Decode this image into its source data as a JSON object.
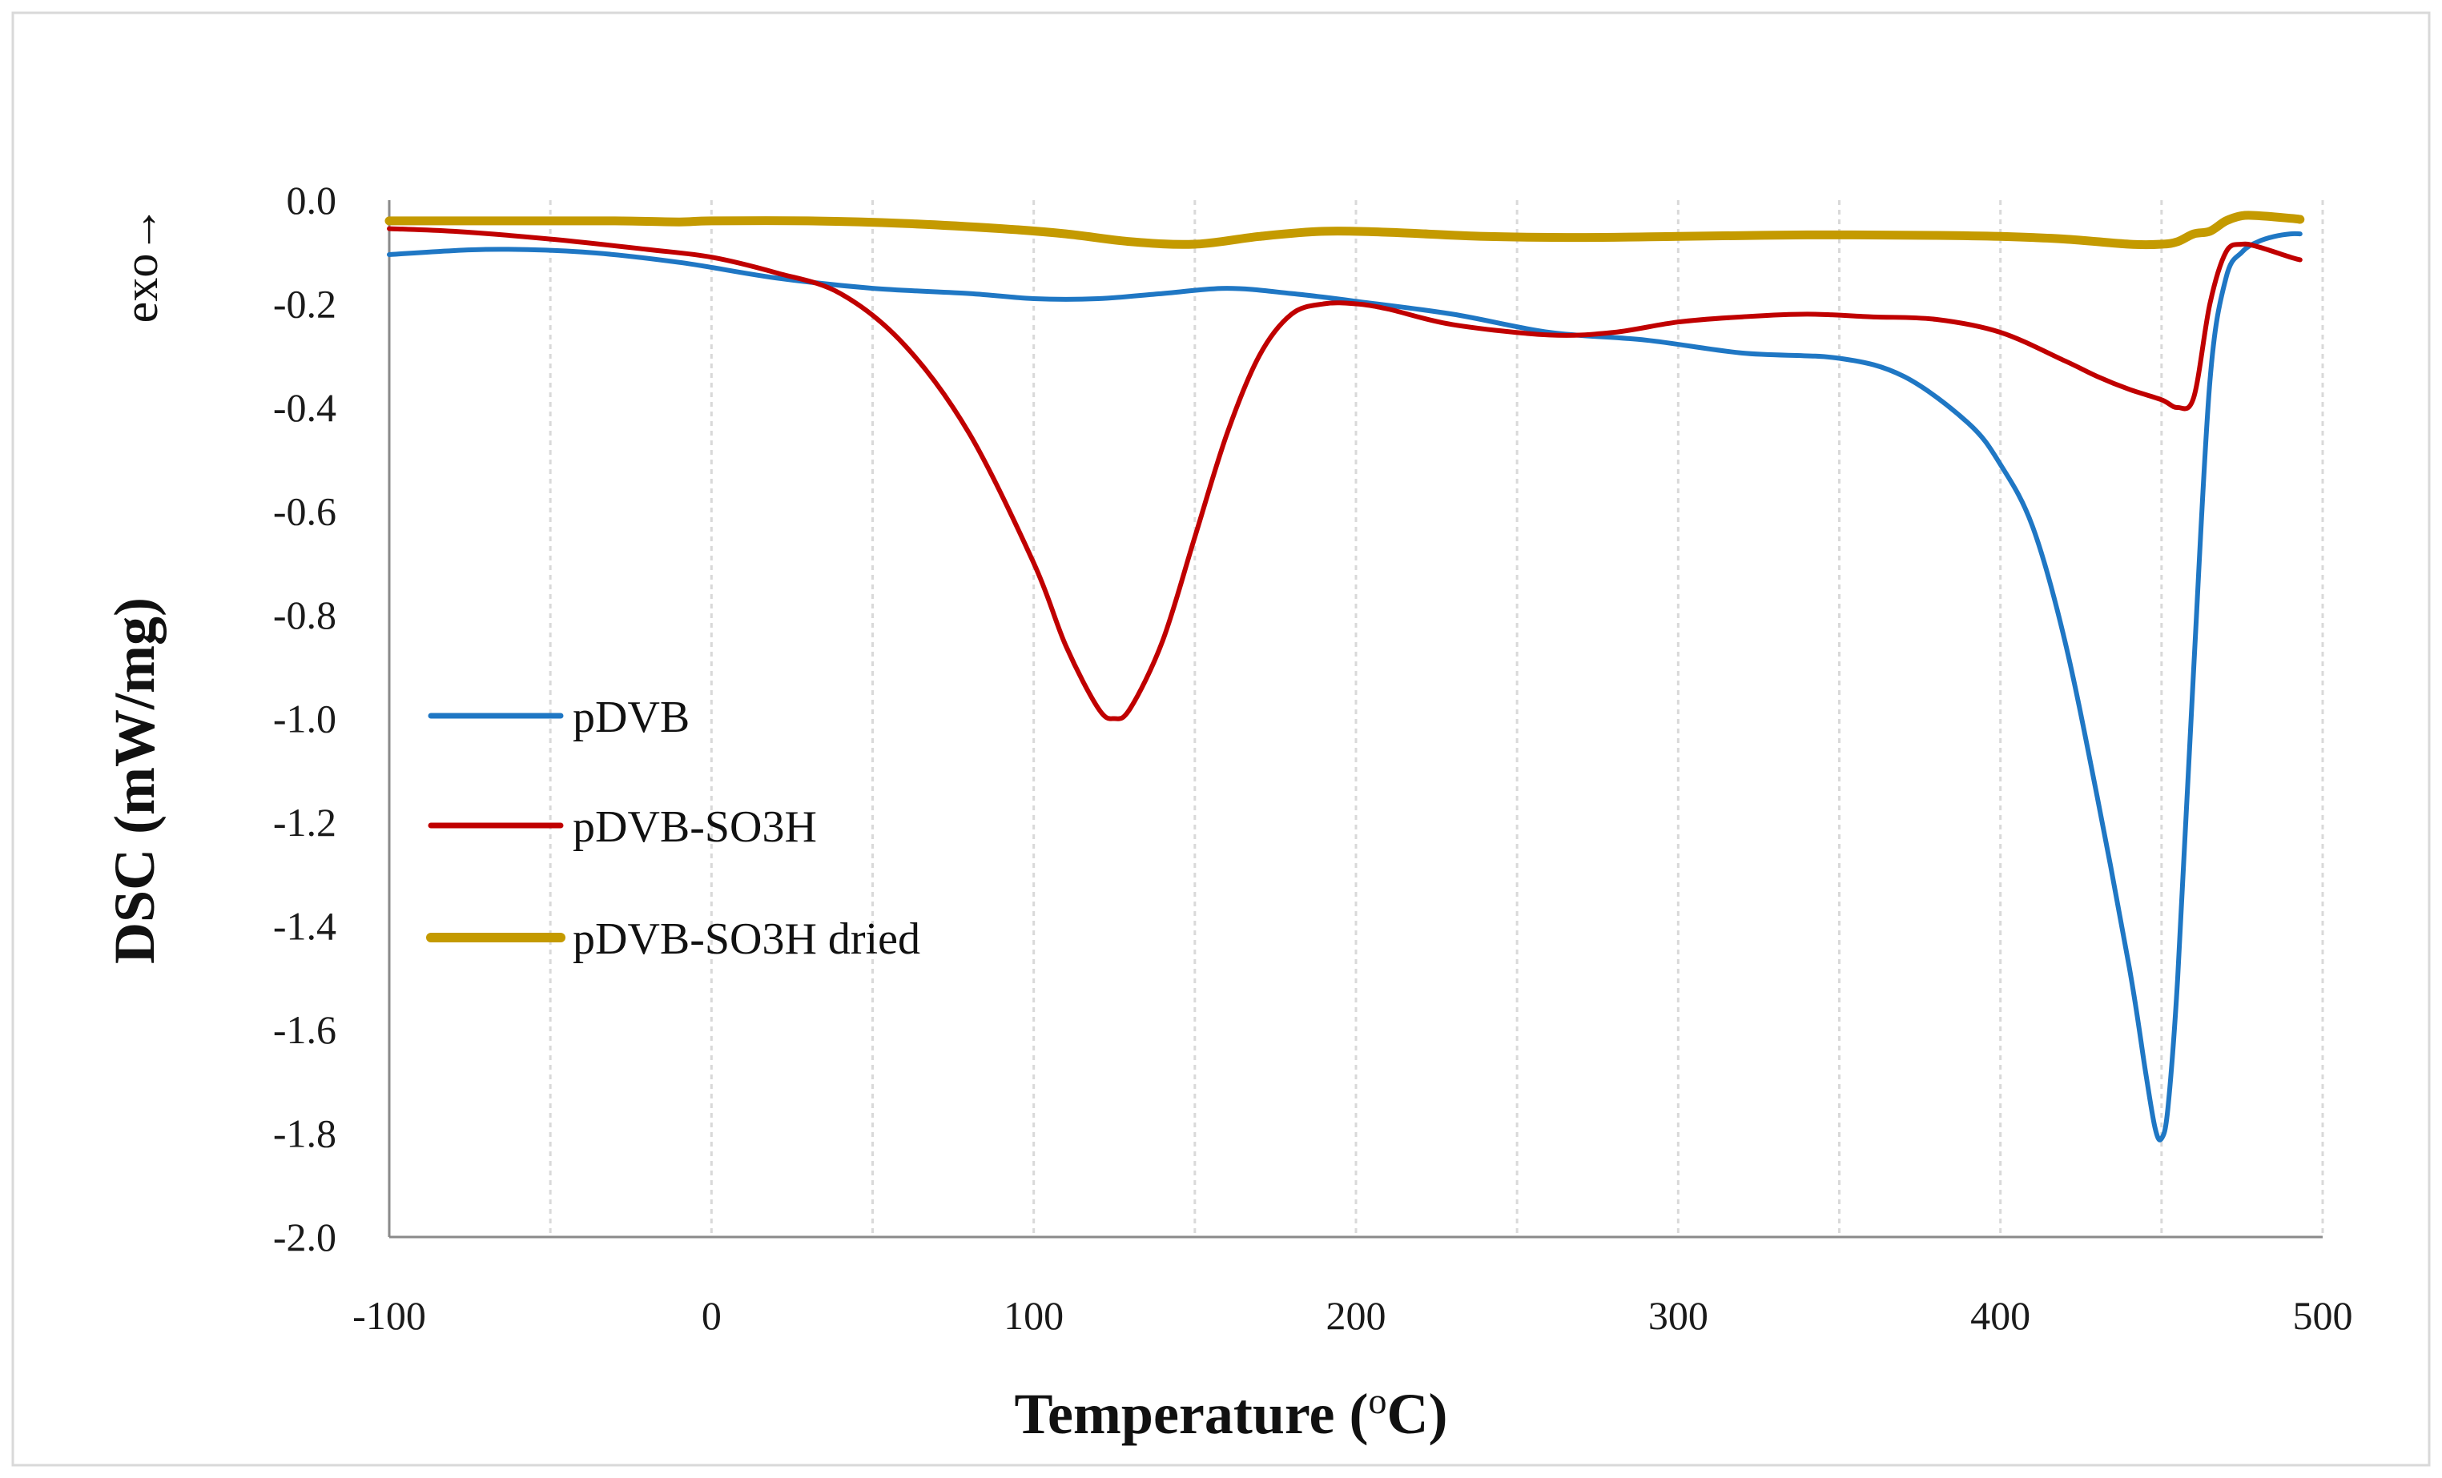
{
  "chart_data": {
    "type": "line",
    "title": "",
    "xlabel": "Temperature (oC)",
    "xlabel_main": "Temperature (",
    "xlabel_sup": "o",
    "xlabel_tail": "C)",
    "ylabel": "DSC (mW/mg)",
    "direction_label": "exo→",
    "xlim": [
      -100,
      500
    ],
    "ylim": [
      -2.0,
      0.0
    ],
    "x_ticks": [
      "-100",
      "0",
      "100",
      "200",
      "300",
      "400",
      "500"
    ],
    "y_ticks": [
      "0.0",
      "-0.2",
      "-0.4",
      "-0.6",
      "-0.8",
      "-1.0",
      "-1.2",
      "-1.4",
      "-1.6",
      "-1.8",
      "-2.0"
    ],
    "grid": "vertical dashed",
    "legend_position": "middle-left",
    "series": [
      {
        "name": "pDVB",
        "color": "#1f77c4",
        "x": [
          -100,
          -70,
          -40,
          -10,
          20,
          50,
          80,
          100,
          120,
          140,
          160,
          180,
          200,
          230,
          260,
          290,
          320,
          350,
          370,
          390,
          400,
          410,
          420,
          430,
          440,
          445,
          448,
          450,
          452,
          455,
          460,
          465,
          470,
          475,
          480,
          485,
          490,
          493
        ],
        "values": [
          -0.105,
          -0.095,
          -0.1,
          -0.12,
          -0.15,
          -0.17,
          -0.18,
          -0.19,
          -0.19,
          -0.18,
          -0.17,
          -0.18,
          -0.195,
          -0.22,
          -0.255,
          -0.27,
          -0.295,
          -0.305,
          -0.34,
          -0.43,
          -0.51,
          -0.63,
          -0.85,
          -1.15,
          -1.48,
          -1.68,
          -1.79,
          -1.81,
          -1.75,
          -1.5,
          -0.9,
          -0.35,
          -0.15,
          -0.1,
          -0.08,
          -0.07,
          -0.065,
          -0.065
        ]
      },
      {
        "name": "pDVB-SO3H",
        "color": "#c00000",
        "x": [
          -100,
          -80,
          -50,
          -20,
          0,
          20,
          40,
          60,
          80,
          100,
          110,
          120,
          125,
          130,
          140,
          150,
          160,
          170,
          180,
          190,
          200,
          210,
          230,
          260,
          280,
          300,
          320,
          340,
          360,
          380,
          400,
          420,
          430,
          440,
          450,
          455,
          460,
          465,
          470,
          475,
          480,
          490,
          493
        ],
        "values": [
          -0.055,
          -0.06,
          -0.075,
          -0.095,
          -0.11,
          -0.14,
          -0.18,
          -0.28,
          -0.45,
          -0.7,
          -0.86,
          -0.98,
          -1.0,
          -0.98,
          -0.85,
          -0.65,
          -0.45,
          -0.3,
          -0.22,
          -0.2,
          -0.2,
          -0.21,
          -0.24,
          -0.26,
          -0.255,
          -0.235,
          -0.225,
          -0.22,
          -0.225,
          -0.23,
          -0.255,
          -0.31,
          -0.34,
          -0.365,
          -0.385,
          -0.4,
          -0.38,
          -0.2,
          -0.1,
          -0.085,
          -0.09,
          -0.11,
          -0.115
        ]
      },
      {
        "name": "pDVB-SO3H dried",
        "color": "#c49a00",
        "x": [
          -100,
          -60,
          -30,
          -10,
          0,
          30,
          60,
          90,
          110,
          130,
          150,
          170,
          190,
          210,
          240,
          270,
          300,
          340,
          380,
          400,
          420,
          440,
          450,
          455,
          460,
          465,
          470,
          475,
          480,
          490,
          493
        ],
        "values": [
          -0.04,
          -0.04,
          -0.04,
          -0.042,
          -0.04,
          -0.04,
          -0.045,
          -0.055,
          -0.065,
          -0.08,
          -0.085,
          -0.07,
          -0.06,
          -0.062,
          -0.07,
          -0.072,
          -0.07,
          -0.067,
          -0.068,
          -0.07,
          -0.075,
          -0.085,
          -0.085,
          -0.08,
          -0.065,
          -0.06,
          -0.04,
          -0.03,
          -0.03,
          -0.035,
          -0.037
        ]
      }
    ]
  }
}
